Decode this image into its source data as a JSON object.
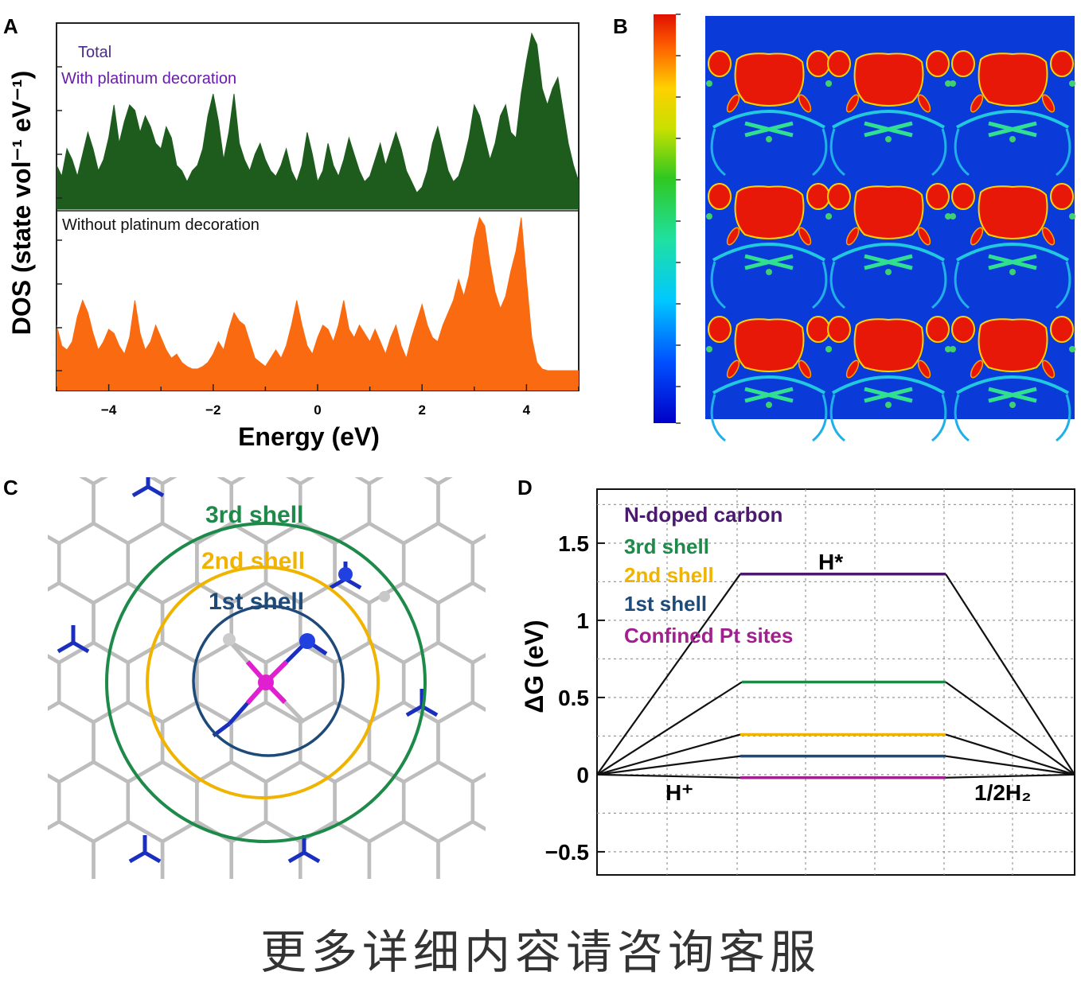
{
  "footer": {
    "text": "更多详细内容请咨询客服"
  },
  "colors": {
    "with_pt": "#1e5c1e",
    "without_pt": "#fa6a10",
    "n_doped": "#4b1a6e",
    "shell3": "#1e8a4a",
    "shell2": "#f0b400",
    "shell1": "#1e4a7a",
    "confined": "#a0208f",
    "bond_gray": "#bdbdbd",
    "bond_blue": "#1a2fbf",
    "pt_atom": "#e020d0"
  },
  "chart_data": [
    {
      "panel": "A",
      "type": "area",
      "xlabel": "Energy (eV)",
      "ylabel": "DOS (state vol⁻¹ eV⁻¹)",
      "xlim": [
        -5,
        5
      ],
      "xticks": [
        "−4",
        "−2",
        "0",
        "2",
        "4"
      ],
      "annotations": [
        "Total",
        "With platinum decoration",
        "Without platinum decoration"
      ],
      "series": [
        {
          "name": "With platinum decoration",
          "x": [
            -5,
            -4.9,
            -4.8,
            -4.7,
            -4.6,
            -4.5,
            -4.4,
            -4.3,
            -4.2,
            -4.1,
            -4.0,
            -3.9,
            -3.8,
            -3.7,
            -3.6,
            -3.5,
            -3.4,
            -3.3,
            -3.2,
            -3.1,
            -3.0,
            -2.9,
            -2.8,
            -2.7,
            -2.6,
            -2.5,
            -2.4,
            -2.3,
            -2.2,
            -2.1,
            -2.0,
            -1.9,
            -1.8,
            -1.7,
            -1.6,
            -1.5,
            -1.4,
            -1.3,
            -1.2,
            -1.1,
            -1.0,
            -0.9,
            -0.8,
            -0.7,
            -0.6,
            -0.5,
            -0.4,
            -0.3,
            -0.2,
            -0.1,
            0.0,
            0.1,
            0.2,
            0.3,
            0.4,
            0.5,
            0.6,
            0.7,
            0.8,
            0.9,
            1.0,
            1.1,
            1.2,
            1.3,
            1.4,
            1.5,
            1.6,
            1.7,
            1.8,
            1.9,
            2.0,
            2.1,
            2.2,
            2.3,
            2.4,
            2.5,
            2.6,
            2.7,
            2.8,
            2.9,
            3.0,
            3.1,
            3.2,
            3.3,
            3.4,
            3.5,
            3.6,
            3.7,
            3.8,
            3.9,
            4.0,
            4.1,
            4.2,
            4.3,
            4.4,
            4.5,
            4.6,
            4.7,
            4.8,
            4.9,
            5.0
          ],
          "values": [
            0.4,
            0.3,
            0.55,
            0.45,
            0.3,
            0.5,
            0.7,
            0.55,
            0.35,
            0.45,
            0.65,
            0.95,
            0.6,
            0.8,
            0.95,
            0.9,
            0.7,
            0.85,
            0.75,
            0.6,
            0.55,
            0.75,
            0.65,
            0.4,
            0.35,
            0.25,
            0.35,
            0.4,
            0.55,
            0.85,
            1.05,
            0.8,
            0.45,
            0.7,
            1.05,
            0.6,
            0.45,
            0.35,
            0.5,
            0.6,
            0.45,
            0.35,
            0.3,
            0.4,
            0.55,
            0.35,
            0.25,
            0.4,
            0.7,
            0.5,
            0.25,
            0.35,
            0.6,
            0.4,
            0.3,
            0.45,
            0.65,
            0.5,
            0.35,
            0.25,
            0.3,
            0.45,
            0.6,
            0.4,
            0.55,
            0.7,
            0.55,
            0.35,
            0.25,
            0.15,
            0.2,
            0.35,
            0.6,
            0.75,
            0.55,
            0.35,
            0.25,
            0.3,
            0.45,
            0.65,
            0.95,
            0.85,
            0.65,
            0.45,
            0.6,
            0.85,
            0.95,
            0.7,
            0.65,
            1.05,
            1.35,
            1.6,
            1.5,
            1.1,
            0.95,
            1.1,
            1.2,
            0.9,
            0.6,
            0.4,
            0.25
          ]
        },
        {
          "name": "Without platinum decoration",
          "x": [
            -5,
            -4.9,
            -4.8,
            -4.7,
            -4.6,
            -4.5,
            -4.4,
            -4.3,
            -4.2,
            -4.1,
            -4.0,
            -3.9,
            -3.8,
            -3.7,
            -3.6,
            -3.5,
            -3.4,
            -3.3,
            -3.2,
            -3.1,
            -3.0,
            -2.9,
            -2.8,
            -2.7,
            -2.6,
            -2.5,
            -2.4,
            -2.3,
            -2.2,
            -2.1,
            -2.0,
            -1.9,
            -1.8,
            -1.7,
            -1.6,
            -1.5,
            -1.4,
            -1.3,
            -1.2,
            -1.1,
            -1.0,
            -0.9,
            -0.8,
            -0.7,
            -0.6,
            -0.5,
            -0.4,
            -0.3,
            -0.2,
            -0.1,
            0.0,
            0.1,
            0.2,
            0.3,
            0.4,
            0.5,
            0.6,
            0.7,
            0.8,
            0.9,
            1.0,
            1.1,
            1.2,
            1.3,
            1.4,
            1.5,
            1.6,
            1.7,
            1.8,
            1.9,
            2.0,
            2.1,
            2.2,
            2.3,
            2.4,
            2.5,
            2.6,
            2.7,
            2.8,
            2.9,
            3.0,
            3.1,
            3.2,
            3.3,
            3.4,
            3.5,
            3.6,
            3.7,
            3.8,
            3.9,
            4.0,
            4.1,
            4.2,
            4.3,
            4.4,
            4.5,
            4.6,
            4.7,
            4.8,
            4.9,
            5.0
          ],
          "values": [
            0.55,
            0.3,
            0.25,
            0.35,
            0.65,
            0.85,
            0.7,
            0.45,
            0.25,
            0.35,
            0.5,
            0.45,
            0.3,
            0.2,
            0.4,
            0.85,
            0.45,
            0.25,
            0.35,
            0.55,
            0.4,
            0.25,
            0.15,
            0.2,
            0.1,
            0.05,
            0.02,
            0.02,
            0.05,
            0.1,
            0.2,
            0.35,
            0.25,
            0.5,
            0.7,
            0.6,
            0.55,
            0.35,
            0.15,
            0.1,
            0.05,
            0.15,
            0.25,
            0.15,
            0.3,
            0.55,
            0.85,
            0.55,
            0.3,
            0.2,
            0.4,
            0.55,
            0.5,
            0.35,
            0.55,
            0.85,
            0.5,
            0.4,
            0.55,
            0.45,
            0.35,
            0.5,
            0.35,
            0.2,
            0.4,
            0.55,
            0.3,
            0.15,
            0.4,
            0.6,
            0.8,
            0.55,
            0.4,
            0.35,
            0.55,
            0.7,
            0.85,
            1.1,
            0.9,
            1.15,
            1.6,
            1.85,
            1.75,
            1.3,
            0.95,
            0.75,
            0.9,
            1.2,
            1.45,
            1.85,
            1.1,
            0.4,
            0.1,
            0.02,
            0.0,
            0.0,
            0.0,
            0.0,
            0.0,
            0.0,
            0.0
          ]
        }
      ]
    },
    {
      "panel": "D",
      "type": "line",
      "ylabel": "ΔG (eV)",
      "ylim": [
        -0.65,
        1.85
      ],
      "yticks": [
        "1.5",
        "1",
        "0.5",
        "0",
        "−0.5"
      ],
      "grid": true,
      "points": {
        "start": "H⁺",
        "middle": "H*",
        "end": "1/2H₂"
      },
      "series": [
        {
          "name": "N-doped carbon",
          "value": 1.3
        },
        {
          "name": "3rd shell",
          "value": 0.6
        },
        {
          "name": "2nd shell",
          "value": 0.26
        },
        {
          "name": "1st shell",
          "value": 0.12
        },
        {
          "name": "Confined Pt sites",
          "value": -0.02
        }
      ]
    }
  ],
  "panels": {
    "a": {
      "letter": "A"
    },
    "b": {
      "letter": "B"
    },
    "c": {
      "letter": "C",
      "shells": [
        "3rd shell",
        "2nd shell",
        "1st shell"
      ]
    },
    "d": {
      "letter": "D"
    }
  }
}
